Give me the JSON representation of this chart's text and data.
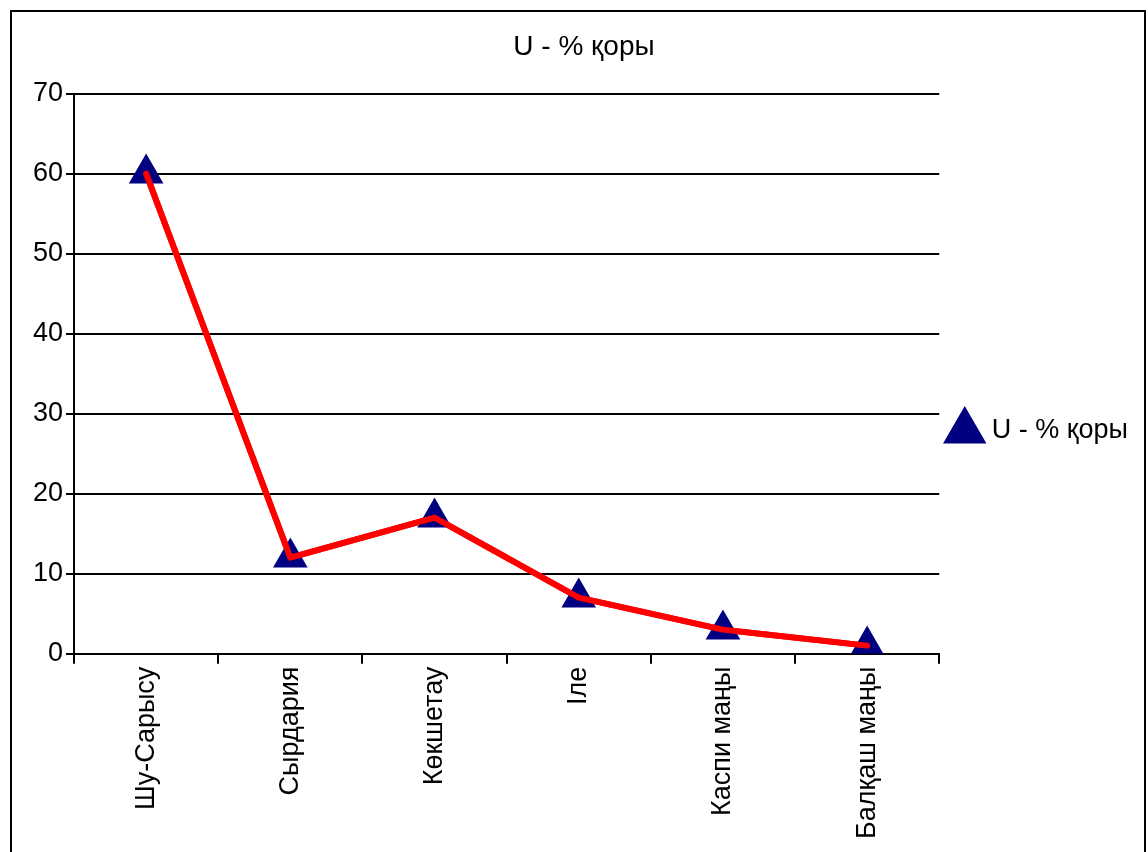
{
  "chart_data": {
    "type": "line",
    "title": "U - % қоры",
    "categories": [
      "Шу-Сарысу",
      "Сырдария",
      "Көкшетау",
      "Іле",
      "Каспи маңы",
      "Балқаш маңы"
    ],
    "series": [
      {
        "name": "U - % қоры",
        "color": "#ff0000",
        "values": [
          60,
          12,
          17,
          7,
          3,
          1
        ]
      }
    ],
    "ylim": [
      0,
      70
    ],
    "yticks": [
      0,
      10,
      20,
      30,
      40,
      50,
      60,
      70
    ],
    "grid": "y",
    "legend": "right",
    "marker": "triangle",
    "line_style": "solid"
  }
}
